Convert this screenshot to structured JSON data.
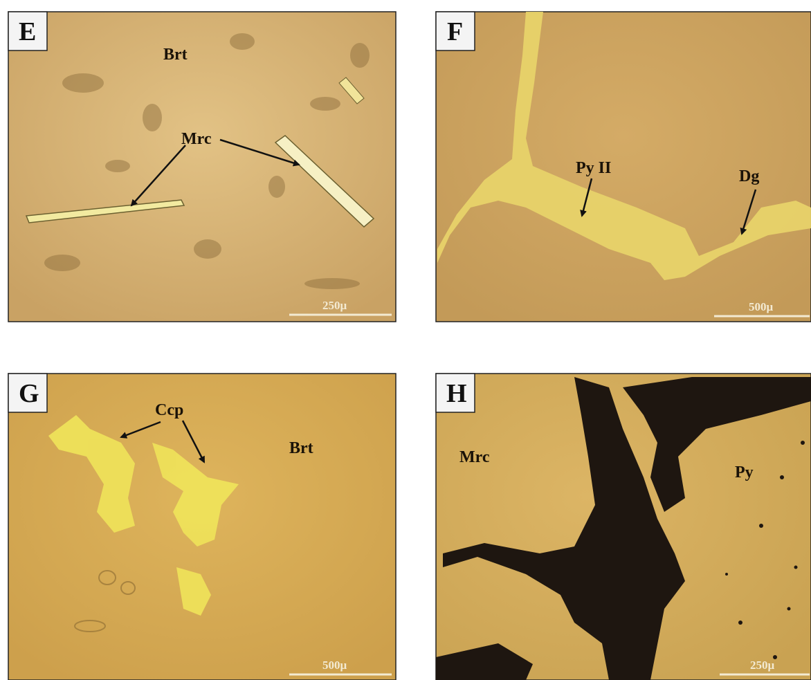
{
  "panels": [
    {
      "label": "E",
      "annotations": [
        "Brt",
        "Mrc"
      ],
      "scale_bar": "250μ"
    },
    {
      "label": "F",
      "annotations": [
        "Py II",
        "Dg"
      ],
      "scale_bar": "500μ"
    },
    {
      "label": "G",
      "annotations": [
        "Ccp",
        "Brt"
      ],
      "scale_bar": "500μ"
    },
    {
      "label": "H",
      "annotations": [
        "Mrc",
        "Py"
      ],
      "scale_bar": "250μ"
    }
  ]
}
